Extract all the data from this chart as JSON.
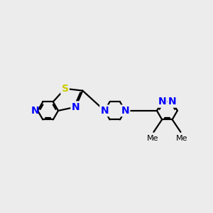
{
  "background_color": "#ececec",
  "bond_color": "#000000",
  "N_color": "#0000ff",
  "S_color": "#cccc00",
  "line_width": 1.6,
  "font_size": 9,
  "figsize": [
    3.0,
    3.0
  ],
  "dpi": 100,
  "xlim": [
    0,
    10
  ],
  "ylim": [
    2,
    9
  ],
  "BL": 0.85
}
